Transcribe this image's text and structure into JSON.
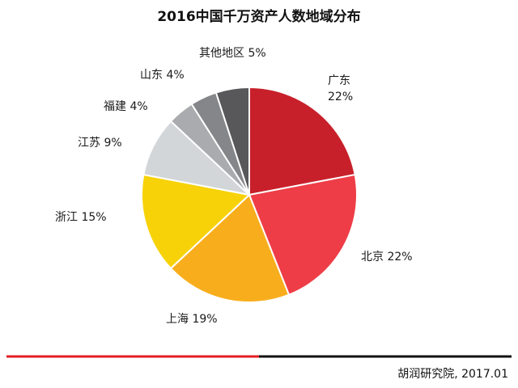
{
  "chart_data": {
    "type": "pie",
    "title": "2016中国千万资产人数地域分布",
    "categories": [
      "广东",
      "北京",
      "上海",
      "浙江",
      "江苏",
      "福建",
      "山东",
      "其他地区"
    ],
    "values": [
      22,
      22,
      19,
      15,
      9,
      4,
      4,
      5
    ],
    "value_labels": [
      "22%",
      "22%",
      "19%",
      "15%",
      "9%",
      "4%",
      "4%",
      "5%"
    ],
    "colors": [
      "#c8202a",
      "#ee3d47",
      "#f8ae1c",
      "#f7d209",
      "#d3d6d9",
      "#a9abae",
      "#858689",
      "#58585a"
    ],
    "start_angle": "12 o'clock",
    "direction": "clockwise"
  },
  "footer": {
    "source": "胡润研究院, 2017.01",
    "rule_colors": [
      "#e31e24",
      "#111111"
    ]
  }
}
